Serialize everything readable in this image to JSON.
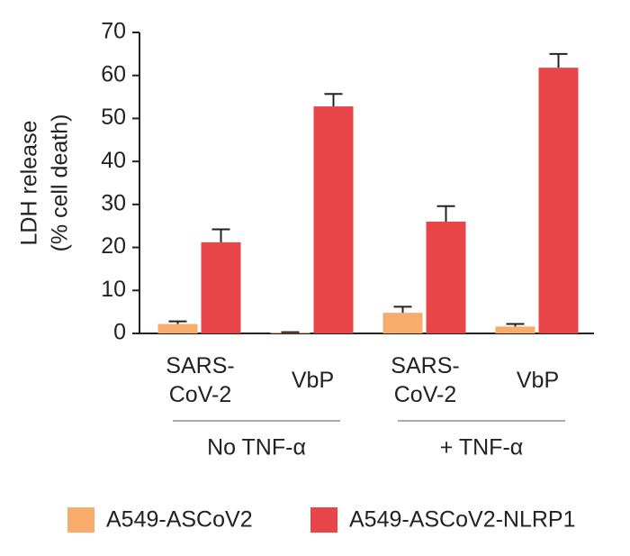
{
  "chart_data": {
    "type": "bar",
    "y_label": [
      "LDH release",
      "(% cell death)"
    ],
    "categories": [
      "SARS-\nCoV-2",
      "VbP",
      "SARS-\nCoV-2",
      "VbP"
    ],
    "groups": [
      "No TNF-α",
      "+ TNF-α"
    ],
    "series": [
      {
        "name": "A549-ASCoV2",
        "color": "#f7ac6b",
        "values": [
          2.2,
          0.2,
          4.8,
          1.6
        ],
        "errors": [
          0.6,
          0.1,
          1.4,
          0.6
        ]
      },
      {
        "name": "A549-ASCoV2-NLRP1",
        "color": "#e84548",
        "values": [
          21.2,
          52.8,
          26,
          61.8
        ],
        "errors": [
          3.0,
          2.9,
          3.6,
          3.2
        ]
      }
    ],
    "ylim": [
      0,
      70
    ],
    "yticks": [
      0,
      10,
      20,
      30,
      40,
      50,
      60,
      70
    ]
  }
}
